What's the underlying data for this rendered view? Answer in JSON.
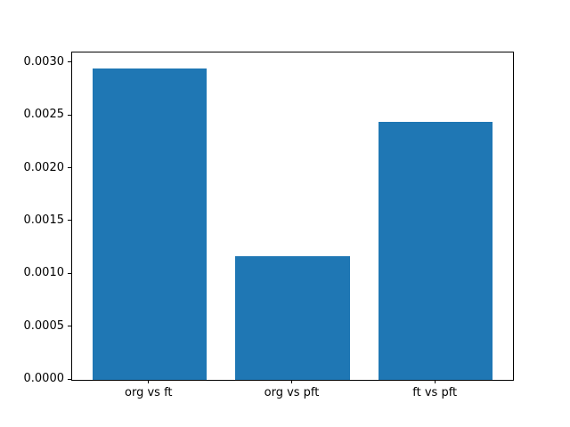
{
  "chart_data": {
    "type": "bar",
    "title": "",
    "xlabel": "",
    "ylabel": "",
    "categories": [
      "org vs ft",
      "org vs pft",
      "ft vs pft"
    ],
    "values": [
      0.00295,
      0.00117,
      0.00244
    ],
    "bar_color": "#1f77b4",
    "ylim": [
      0,
      0.0031
    ],
    "yticks": [
      0.0,
      0.0005,
      0.001,
      0.0015,
      0.002,
      0.0025,
      0.003
    ],
    "ytick_labels": [
      "0.0000",
      "0.0005",
      "0.0010",
      "0.0015",
      "0.0020",
      "0.0025",
      "0.0030"
    ],
    "grid": false,
    "legend": null
  }
}
